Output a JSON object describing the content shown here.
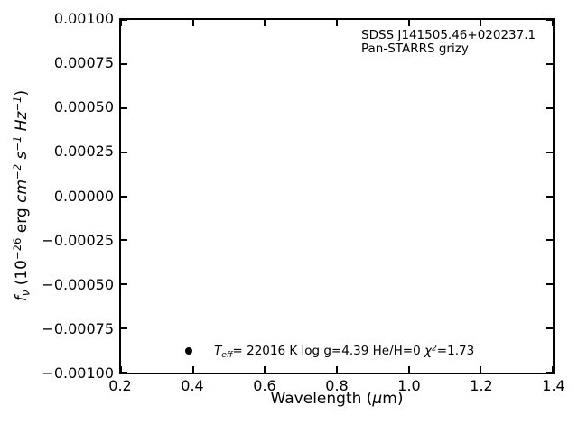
{
  "colors": {
    "background": "#ffffff",
    "foreground": "#000000"
  },
  "chart_data": {
    "type": "scatter",
    "title": "",
    "xlabel": "Wavelength (μm)",
    "ylabel": "fν (10⁻²⁶ erg cm⁻² s⁻¹ Hz⁻¹)",
    "xlabel_rich": [
      [
        "Wavelength (",
        ""
      ],
      [
        "μ",
        "i"
      ],
      [
        "m",
        ""
      ],
      [
        ")",
        ""
      ]
    ],
    "ylabel_rich": [
      [
        "f",
        "i"
      ],
      [
        "ν",
        "isub"
      ],
      [
        " (10",
        ""
      ],
      [
        "−26",
        "sup"
      ],
      [
        " erg ",
        ""
      ],
      [
        "cm",
        "i"
      ],
      [
        "−2",
        "isup"
      ],
      [
        " ",
        ""
      ],
      [
        "s",
        "i"
      ],
      [
        "−1",
        "isup"
      ],
      [
        " ",
        ""
      ],
      [
        "Hz",
        "i"
      ],
      [
        "−1",
        "isup"
      ],
      [
        ")",
        ""
      ]
    ],
    "xlim": [
      0.2,
      1.4
    ],
    "ylim": [
      -0.001,
      0.001
    ],
    "grid": false,
    "x_ticks": [
      {
        "v": 0.2,
        "label": "0.2"
      },
      {
        "v": 0.4,
        "label": "0.4"
      },
      {
        "v": 0.6,
        "label": "0.6"
      },
      {
        "v": 0.8,
        "label": "0.8"
      },
      {
        "v": 1.0,
        "label": "1.0"
      },
      {
        "v": 1.2,
        "label": "1.2"
      },
      {
        "v": 1.4,
        "label": "1.4"
      }
    ],
    "y_ticks": [
      {
        "v": 0.001,
        "label": "0.00100"
      },
      {
        "v": 0.00075,
        "label": "0.00075"
      },
      {
        "v": 0.0005,
        "label": "0.00050"
      },
      {
        "v": 0.00025,
        "label": "0.00025"
      },
      {
        "v": 0.0,
        "label": "0.00000"
      },
      {
        "v": -0.00025,
        "label": "−0.00025"
      },
      {
        "v": -0.0005,
        "label": "−0.00050"
      },
      {
        "v": -0.00075,
        "label": "−0.00075"
      },
      {
        "v": -0.001,
        "label": "−0.00100"
      }
    ],
    "annotations": [
      "SDSS J141505.46+020237.1",
      "Pan-STARRS grizy"
    ],
    "legend_position": "inside-lower-left",
    "legend_marker": {
      "shape": "filled-circle",
      "color": "#000000"
    },
    "legend_text": "Teff= 22016 K  log g=4.39  He/H=0  χ²=1.73",
    "legend_rich": [
      [
        "T",
        "i"
      ],
      [
        "eff",
        "isub"
      ],
      [
        "= 22016 K  log g=4.39  He/H=0  ",
        ""
      ],
      [
        "χ",
        "i"
      ],
      [
        "2",
        "isup"
      ],
      [
        "=1.73",
        ""
      ]
    ],
    "series": []
  }
}
